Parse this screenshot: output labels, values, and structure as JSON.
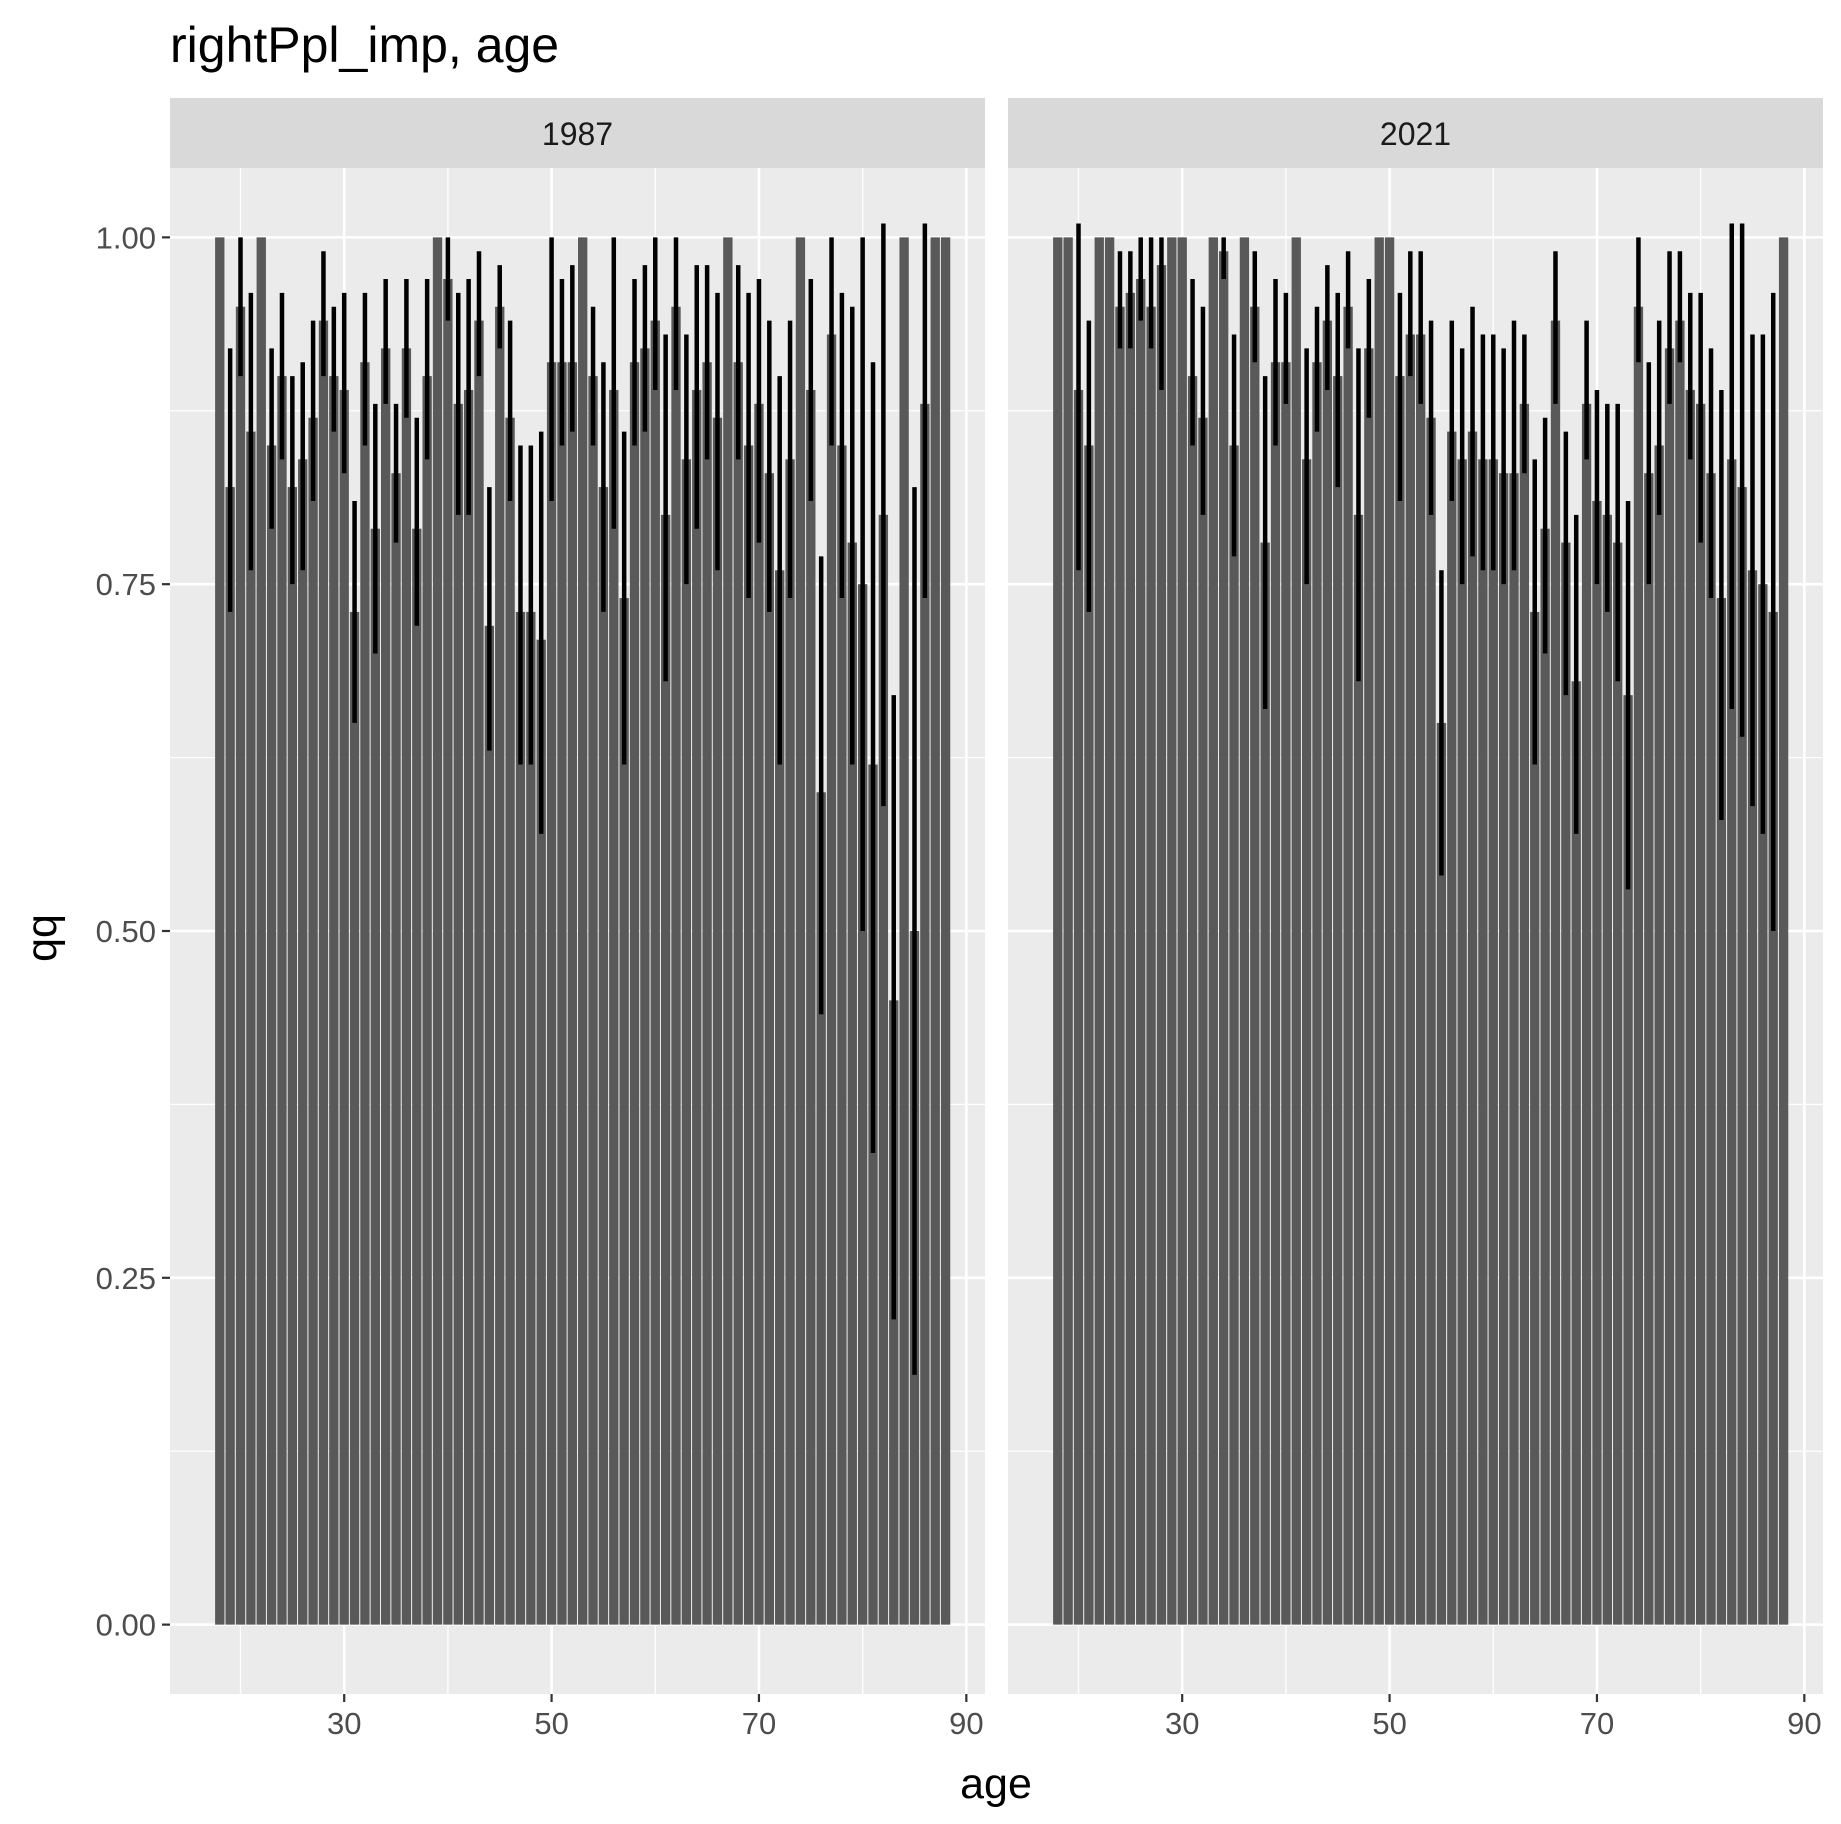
{
  "chart_data": {
    "type": "bar",
    "title": "rightPpl_imp, age",
    "xlabel": "age",
    "ylabel": "qq",
    "ylim": [
      -0.05,
      1.05
    ],
    "xlim": [
      13.2,
      91.8
    ],
    "yticks": [
      0,
      0.25,
      0.5,
      0.75,
      1
    ],
    "ytick_labels": [
      "0.00",
      "0.25",
      "0.50",
      "0.75",
      "1.00"
    ],
    "xticks": [
      30,
      50,
      70,
      90
    ],
    "xtick_labels": [
      "30",
      "50",
      "70",
      "90"
    ],
    "grid": true,
    "legend": "none",
    "colors": {
      "bar": "#595959",
      "errorbar": "#000000",
      "panel": "#ebebeb",
      "grid": "#ffffff",
      "strip": "#d9d9d9"
    },
    "facets": [
      {
        "label": "1987",
        "x": [
          18,
          19,
          20,
          21,
          22,
          23,
          24,
          25,
          26,
          27,
          28,
          29,
          30,
          31,
          32,
          33,
          34,
          35,
          36,
          37,
          38,
          39,
          40,
          41,
          42,
          43,
          44,
          45,
          46,
          47,
          48,
          49,
          50,
          51,
          52,
          53,
          54,
          55,
          56,
          57,
          58,
          59,
          60,
          61,
          62,
          63,
          64,
          65,
          66,
          67,
          68,
          69,
          70,
          71,
          72,
          73,
          74,
          75,
          76,
          77,
          78,
          79,
          80,
          81,
          82,
          83,
          84,
          85,
          86,
          87,
          88
        ],
        "values": [
          1.0,
          0.82,
          0.95,
          0.86,
          1.0,
          0.85,
          0.9,
          0.82,
          0.84,
          0.87,
          0.94,
          0.9,
          0.89,
          0.73,
          0.91,
          0.79,
          0.92,
          0.83,
          0.92,
          0.79,
          0.9,
          1.0,
          0.97,
          0.88,
          0.89,
          0.94,
          0.72,
          0.95,
          0.87,
          0.73,
          0.73,
          0.71,
          0.91,
          0.91,
          0.91,
          1.0,
          0.9,
          0.82,
          0.89,
          0.74,
          0.91,
          0.92,
          0.94,
          0.8,
          0.95,
          0.84,
          0.89,
          0.91,
          0.87,
          1.0,
          0.91,
          0.85,
          0.88,
          0.83,
          0.76,
          0.84,
          1.0,
          0.89,
          0.6,
          0.93,
          0.85,
          0.78,
          0.75,
          0.62,
          0.8,
          0.45,
          1.0,
          0.5,
          0.88,
          1.0,
          1.0
        ],
        "ymin": [
          null,
          0.73,
          0.9,
          0.76,
          null,
          0.79,
          0.84,
          0.75,
          0.76,
          0.81,
          0.9,
          0.86,
          0.83,
          0.65,
          0.85,
          0.7,
          0.88,
          0.78,
          0.87,
          0.72,
          0.84,
          null,
          0.94,
          0.8,
          0.8,
          0.9,
          0.63,
          0.92,
          0.81,
          0.62,
          0.62,
          0.57,
          0.81,
          0.85,
          0.86,
          null,
          0.85,
          0.73,
          0.79,
          0.62,
          0.85,
          0.86,
          0.89,
          0.68,
          0.89,
          0.75,
          0.79,
          0.84,
          0.76,
          null,
          0.84,
          0.74,
          0.78,
          0.73,
          0.62,
          0.74,
          null,
          0.81,
          0.44,
          0.85,
          0.74,
          0.62,
          0.5,
          0.34,
          0.59,
          0.22,
          null,
          0.18,
          0.74,
          null,
          null
        ],
        "ymax": [
          null,
          0.92,
          1.0,
          0.96,
          null,
          0.92,
          0.96,
          0.9,
          0.91,
          0.94,
          0.99,
          0.95,
          0.96,
          0.81,
          0.96,
          0.88,
          0.97,
          0.88,
          0.97,
          0.87,
          0.97,
          null,
          1.0,
          0.96,
          0.97,
          0.99,
          0.82,
          0.98,
          0.94,
          0.85,
          0.85,
          0.86,
          1.0,
          0.97,
          0.98,
          null,
          0.95,
          0.91,
          1.0,
          0.86,
          0.97,
          0.98,
          1.0,
          0.93,
          1.0,
          0.93,
          0.98,
          0.98,
          0.96,
          null,
          0.98,
          0.96,
          0.97,
          0.94,
          0.9,
          0.94,
          null,
          0.97,
          0.77,
          1.0,
          0.96,
          0.95,
          1.0,
          0.91,
          1.01,
          0.67,
          null,
          0.82,
          1.01,
          null,
          null
        ]
      },
      {
        "label": "2021",
        "x": [
          18,
          19,
          20,
          21,
          22,
          23,
          24,
          25,
          26,
          27,
          28,
          29,
          30,
          31,
          32,
          33,
          34,
          35,
          36,
          37,
          38,
          39,
          40,
          41,
          42,
          43,
          44,
          45,
          46,
          47,
          48,
          49,
          50,
          51,
          52,
          53,
          54,
          55,
          56,
          57,
          58,
          59,
          60,
          61,
          62,
          63,
          64,
          65,
          66,
          67,
          68,
          69,
          70,
          71,
          72,
          73,
          74,
          75,
          76,
          77,
          78,
          79,
          80,
          81,
          82,
          83,
          84,
          85,
          86,
          87,
          88
        ],
        "values": [
          1.0,
          1.0,
          0.89,
          0.85,
          1.0,
          1.0,
          0.95,
          0.96,
          0.97,
          0.95,
          0.98,
          1.0,
          1.0,
          0.9,
          0.87,
          1.0,
          0.99,
          0.85,
          1.0,
          0.95,
          0.78,
          0.91,
          0.91,
          1.0,
          0.84,
          0.91,
          0.94,
          0.9,
          0.95,
          0.8,
          0.92,
          1.0,
          1.0,
          0.9,
          0.93,
          0.93,
          0.87,
          0.65,
          0.86,
          0.84,
          0.86,
          0.84,
          0.84,
          0.83,
          0.83,
          0.88,
          0.73,
          0.79,
          0.94,
          0.78,
          0.68,
          0.88,
          0.81,
          0.8,
          0.78,
          0.67,
          0.95,
          0.83,
          0.85,
          0.92,
          0.94,
          0.89,
          0.88,
          0.83,
          0.74,
          0.84,
          0.82,
          0.76,
          0.75,
          0.73,
          1.0
        ],
        "ymin": [
          null,
          null,
          0.76,
          0.73,
          null,
          null,
          0.92,
          0.92,
          0.94,
          0.92,
          0.89,
          null,
          null,
          0.85,
          0.8,
          null,
          0.97,
          0.77,
          null,
          0.91,
          0.66,
          0.85,
          0.88,
          null,
          0.75,
          0.86,
          0.89,
          0.82,
          0.92,
          0.68,
          0.87,
          null,
          null,
          0.81,
          0.9,
          0.88,
          0.8,
          0.54,
          0.81,
          0.75,
          0.77,
          0.76,
          0.76,
          0.75,
          0.76,
          0.83,
          0.62,
          0.7,
          0.88,
          0.67,
          0.57,
          0.84,
          0.75,
          0.73,
          0.68,
          0.53,
          0.91,
          0.75,
          0.8,
          0.88,
          0.91,
          0.84,
          0.78,
          0.74,
          0.58,
          0.66,
          0.64,
          0.59,
          0.57,
          0.5,
          null
        ],
        "ymax": [
          null,
          null,
          1.01,
          0.94,
          null,
          null,
          0.99,
          0.99,
          1.0,
          1.0,
          1.0,
          null,
          null,
          0.97,
          0.95,
          null,
          1.0,
          0.93,
          null,
          0.99,
          0.9,
          0.97,
          0.96,
          null,
          0.92,
          0.95,
          0.98,
          0.96,
          0.99,
          0.92,
          0.97,
          null,
          null,
          0.96,
          0.99,
          0.99,
          0.94,
          0.76,
          0.94,
          0.92,
          0.95,
          0.93,
          0.93,
          0.92,
          0.94,
          0.93,
          0.84,
          0.87,
          0.99,
          0.86,
          0.8,
          0.94,
          0.89,
          0.88,
          0.88,
          0.81,
          1.0,
          0.91,
          0.94,
          0.99,
          0.99,
          0.96,
          0.96,
          0.92,
          0.89,
          1.01,
          1.01,
          0.93,
          0.93,
          0.96,
          null
        ]
      }
    ]
  }
}
